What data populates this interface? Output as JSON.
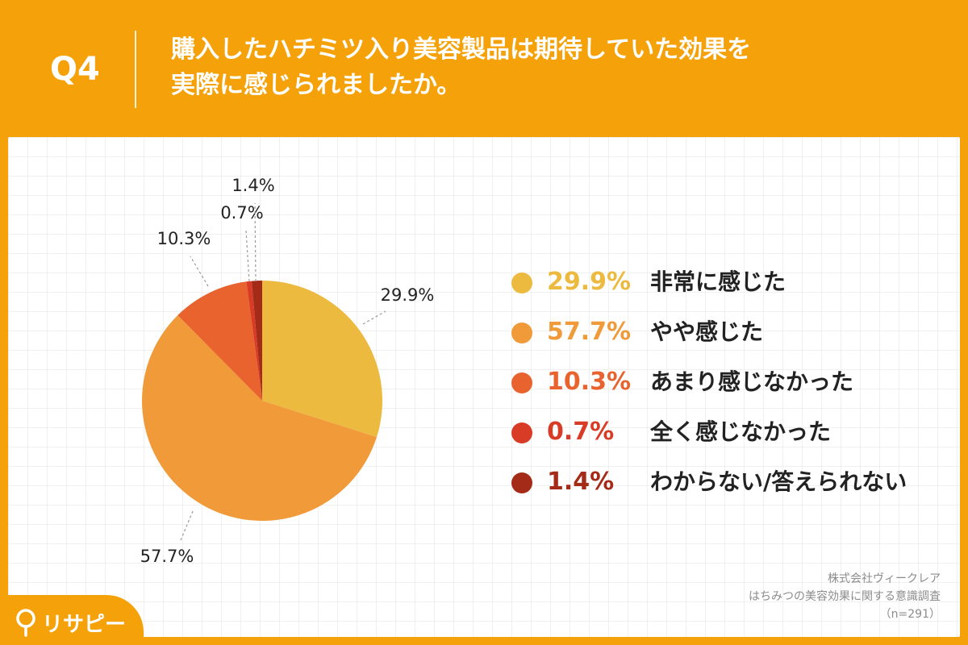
{
  "header": {
    "q_label": "Q4",
    "title_line1": "購入したハチミツ入り美容製品は期待していた効果を",
    "title_line2": "実際に感じられましたか。"
  },
  "chart_data": {
    "type": "pie",
    "categories": [
      "非常に感じた",
      "やや感じた",
      "あまり感じなかった",
      "全く感じなかった",
      "わからない/答えられない"
    ],
    "values": [
      29.9,
      57.7,
      10.3,
      0.7,
      1.4
    ],
    "value_labels": [
      "29.9%",
      "57.7%",
      "10.3%",
      "0.7%",
      "1.4%"
    ],
    "colors": [
      "#EDBA40",
      "#F09A3A",
      "#E9632F",
      "#D93C26",
      "#A42B18"
    ],
    "start_angle_deg": 0,
    "direction": "clockwise",
    "legend_position": "right"
  },
  "legend": [
    {
      "pct": "29.9%",
      "label": "非常に感じた",
      "color": "#EDBA40"
    },
    {
      "pct": "57.7%",
      "label": "やや感じた",
      "color": "#F09A3A"
    },
    {
      "pct": "10.3%",
      "label": "あまり感じなかった",
      "color": "#E9632F"
    },
    {
      "pct": "0.7%",
      "label": "全く感じなかった",
      "color": "#D93C26"
    },
    {
      "pct": "1.4%",
      "label": "わからない/答えられない",
      "color": "#A42B18"
    }
  ],
  "source": {
    "company": "株式会社ヴィークレア",
    "survey": "はちみつの美容効果に関する意識調査",
    "n": "（n=291）"
  },
  "brand": {
    "name": "リサピー"
  },
  "colors": {
    "header_bg": "#F5A20A",
    "panel_bg": "#FFFFFF"
  }
}
